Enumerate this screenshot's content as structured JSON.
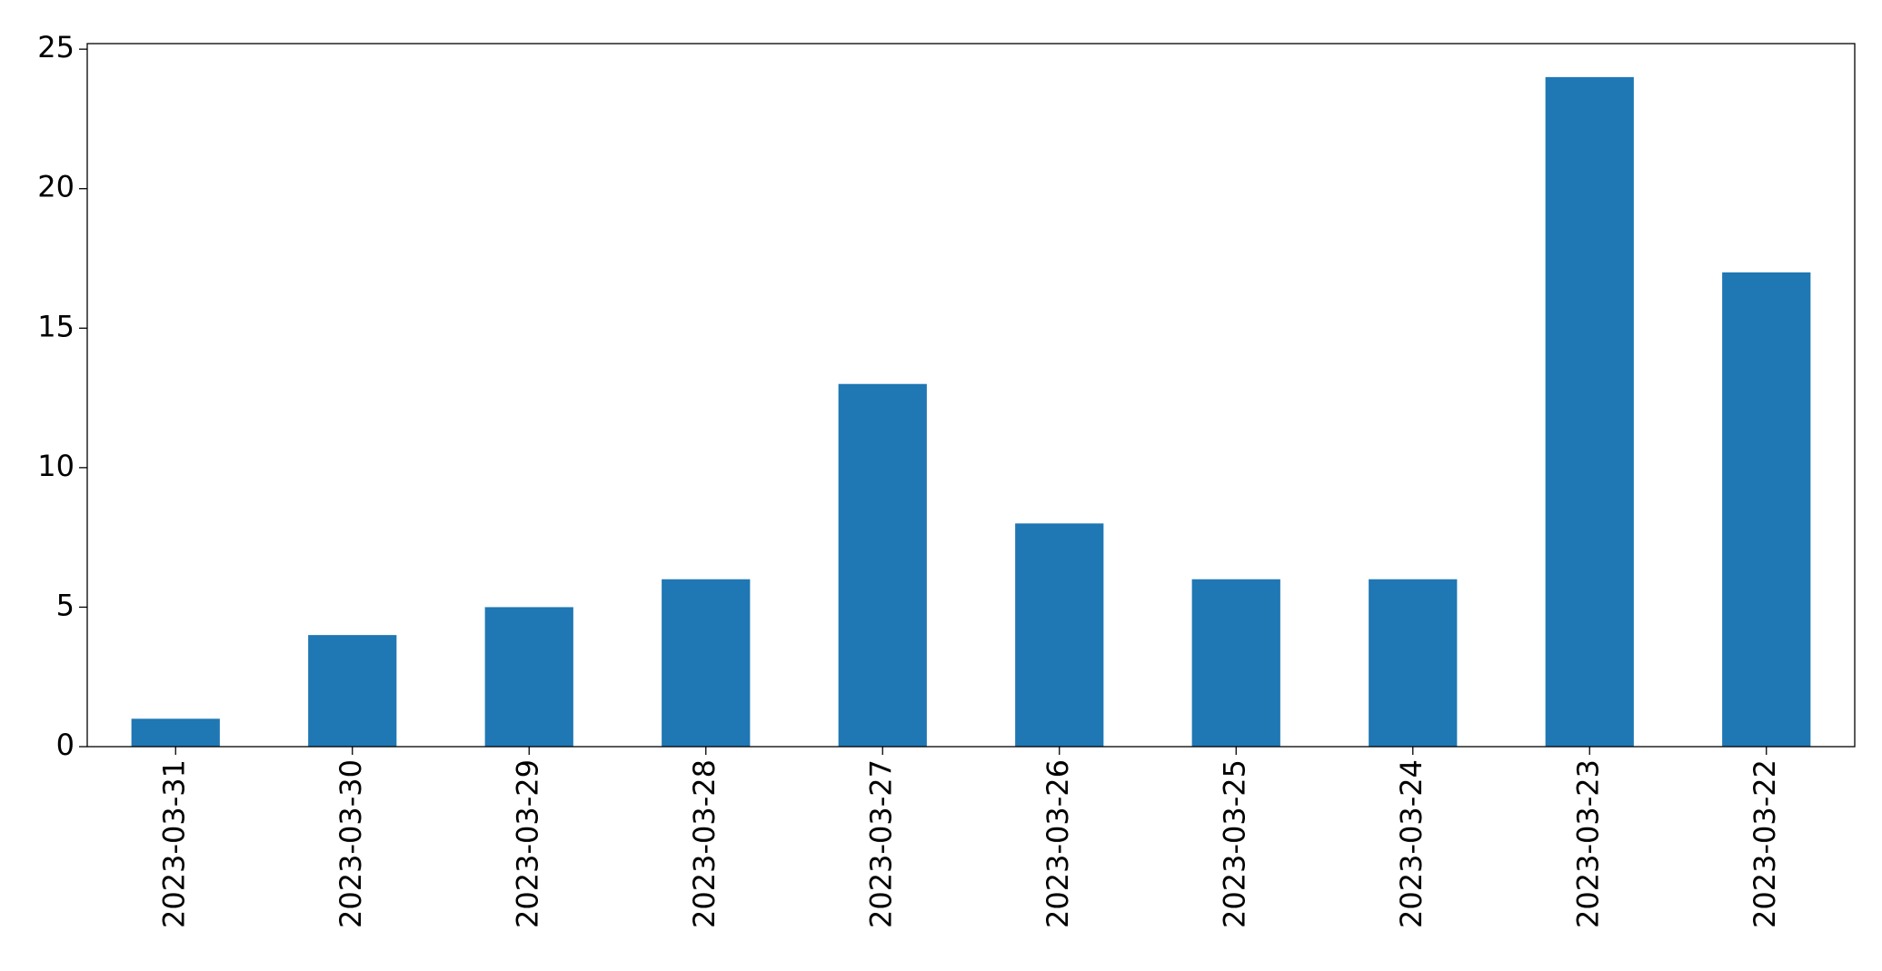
{
  "chart_data": {
    "type": "bar",
    "categories": [
      "2023-03-31",
      "2023-03-30",
      "2023-03-29",
      "2023-03-28",
      "2023-03-27",
      "2023-03-26",
      "2023-03-25",
      "2023-03-24",
      "2023-03-23",
      "2023-03-22"
    ],
    "values": [
      1,
      4,
      5,
      6,
      13,
      8,
      6,
      6,
      24,
      17
    ],
    "color": "#1f77b4",
    "ylim": [
      0,
      25.2
    ],
    "yticks": [
      0,
      5,
      10,
      15,
      20,
      25
    ],
    "grid": false
  }
}
